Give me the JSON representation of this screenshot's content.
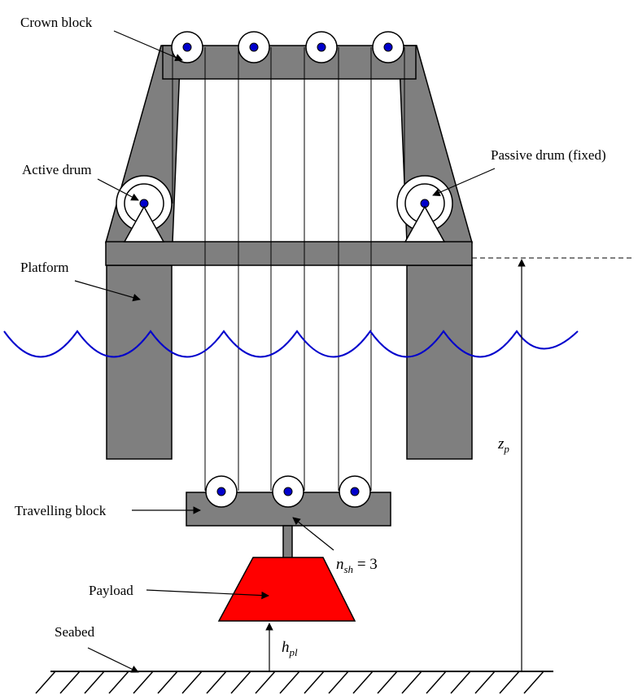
{
  "labels": {
    "crown_block": "Crown block",
    "active_drum": "Active drum",
    "passive_drum": "Passive drum (fixed)",
    "platform": "Platform",
    "travelling_block": "Travelling block",
    "payload": "Payload",
    "seabed": "Seabed",
    "z_p": {
      "symbol": "z",
      "subscript": "p"
    },
    "n_sh": {
      "symbol": "n",
      "subscript": "sh",
      "relation": " = ",
      "value": "3"
    },
    "h_pl": {
      "symbol": "h",
      "subscript": "pl"
    }
  },
  "colors": {
    "structure": "#7f7f7f",
    "outline": "#000000",
    "sheave_center": "#0000cc",
    "water": "#0000cc",
    "payload": "#ff0000",
    "background": "#ffffff"
  },
  "counts": {
    "crown_sheaves": 4,
    "travelling_sheaves": 3,
    "n_sh": 3
  }
}
